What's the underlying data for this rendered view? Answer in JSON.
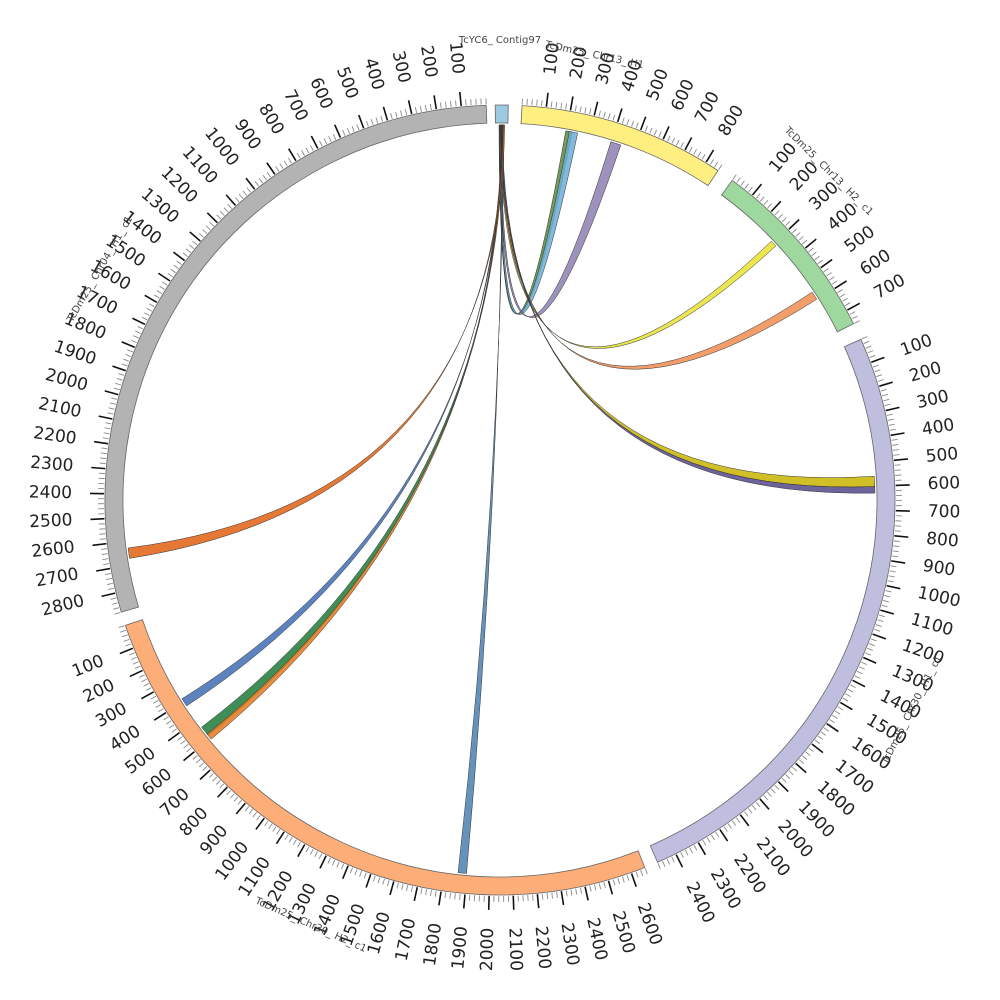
{
  "chart_data": {
    "type": "circos",
    "segments": [
      {
        "id": "contig97",
        "name": "TcYC6_ Contig97",
        "length": 0,
        "color": "#9ecae1",
        "major_ticks": [],
        "label_side": "top"
      },
      {
        "id": "chr13h1",
        "name": "TcDm25_ Chr13_ H1",
        "length": 860,
        "color": "#ffef80",
        "major_ticks": [
          100,
          200,
          300,
          400,
          500,
          600,
          700,
          800
        ],
        "label_side": "out"
      },
      {
        "id": "chr13h2",
        "name": "TcDm25_ Chr13_ H2_ c1",
        "length": 760,
        "color": "#9fd89f",
        "major_ticks": [
          100,
          200,
          300,
          400,
          500,
          600,
          700
        ],
        "label_side": "out"
      },
      {
        "id": "chr30h1",
        "name": "TcDm25_ Chr30_ H1_ c1",
        "length": 2480,
        "color": "#bfbedf",
        "major_ticks": [
          100,
          200,
          300,
          400,
          500,
          600,
          700,
          800,
          900,
          1000,
          1100,
          1200,
          1300,
          1400,
          1500,
          1600,
          1700,
          1800,
          1900,
          2000,
          2100,
          2200,
          2300,
          2400
        ],
        "label_side": "out"
      },
      {
        "id": "chr30h2",
        "name": "TcDm25_ Chr30_ H2_ c1",
        "length": 2660,
        "color": "#fdae78",
        "major_ticks": [
          100,
          200,
          300,
          400,
          500,
          600,
          700,
          800,
          900,
          1000,
          1100,
          1200,
          1300,
          1400,
          1500,
          1600,
          1700,
          1800,
          1900,
          2000,
          2100,
          2200,
          2300,
          2400,
          2500,
          2600
        ],
        "label_side": "out",
        "reversed": true
      },
      {
        "id": "chr04h1",
        "name": "TcDm25_ Chr04_ H1_ c1",
        "length": 2880,
        "color": "#b3b3b3",
        "major_ticks": [
          100,
          200,
          300,
          400,
          500,
          600,
          700,
          800,
          900,
          1000,
          1100,
          1200,
          1300,
          1400,
          1500,
          1600,
          1700,
          1800,
          1900,
          2000,
          2100,
          2200,
          2300,
          2400,
          2500,
          2600,
          2700,
          2800
        ],
        "label_side": "out",
        "reversed": true
      }
    ],
    "links": [
      {
        "target": "chr13h1",
        "target_pos": 210,
        "color": "#5a8a3a"
      },
      {
        "target": "chr13h1",
        "target_pos": 230,
        "color": "#6baed6"
      },
      {
        "target": "chr13h1",
        "target_pos": 420,
        "color": "#8c7fb0"
      },
      {
        "target": "chr13h2",
        "target_pos": 300,
        "color": "#e8e030"
      },
      {
        "target": "chr13h2",
        "target_pos": 580,
        "color": "#f08c50"
      },
      {
        "target": "chr30h1",
        "target_pos": 580,
        "color": "#c8b400"
      },
      {
        "target": "chr30h1",
        "target_pos": 615,
        "color": "#554888"
      },
      {
        "target": "chr30h2",
        "target_pos": 405,
        "color": "#3f6db3"
      },
      {
        "target": "chr30h2",
        "target_pos": 560,
        "color": "#1f7a3a"
      },
      {
        "target": "chr30h2",
        "target_pos": 590,
        "color": "#e0781e"
      },
      {
        "target": "chr30h2",
        "target_pos": 1880,
        "color": "#4a80b0"
      },
      {
        "target": "chr04h1",
        "target_pos": 2650,
        "color": "#e06010"
      }
    ]
  }
}
